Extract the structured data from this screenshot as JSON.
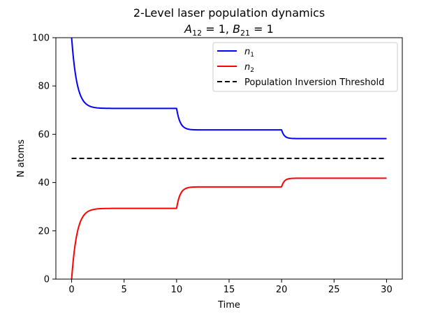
{
  "chart_data": {
    "type": "line",
    "title": "2-Level laser population dynamics",
    "subtitle": {
      "a_symbol": "A",
      "a_sub": "12",
      "a_value": " = 1, ",
      "b_symbol": "B",
      "b_sub": "21",
      "b_value": " = 1"
    },
    "xlabel": "Time",
    "ylabel": "N atoms",
    "xlim": [
      -1.5,
      31.5
    ],
    "ylim": [
      0,
      100
    ],
    "xticks": [
      0,
      5,
      10,
      15,
      20,
      25,
      30
    ],
    "yticks": [
      0,
      20,
      40,
      60,
      80,
      100
    ],
    "grid": false,
    "legend_position": "top-right",
    "series": [
      {
        "legend_symbol": "n",
        "legend_sub": "1",
        "color": "#0000ff",
        "linestyle": "solid",
        "segments": [
          {
            "t_start": 0,
            "t_end": 10,
            "start": 100,
            "plateau": 70.7,
            "rate": 2.0
          },
          {
            "t_start": 10,
            "t_end": 20,
            "start": 70.7,
            "plateau": 61.8,
            "rate": 3.0
          },
          {
            "t_start": 20,
            "t_end": 30,
            "start": 61.8,
            "plateau": 58.2,
            "rate": 4.0
          }
        ]
      },
      {
        "legend_symbol": "n",
        "legend_sub": "2",
        "color": "#ff0000",
        "linestyle": "solid",
        "segments": [
          {
            "t_start": 0,
            "t_end": 10,
            "start": 0,
            "plateau": 29.3,
            "rate": 2.0
          },
          {
            "t_start": 10,
            "t_end": 20,
            "start": 29.3,
            "plateau": 38.2,
            "rate": 3.0
          },
          {
            "t_start": 20,
            "t_end": 30,
            "start": 38.2,
            "plateau": 41.8,
            "rate": 4.0
          }
        ]
      },
      {
        "name": "Population Inversion Threshold",
        "color": "#000000",
        "linestyle": "dashed",
        "x": [
          0,
          30
        ],
        "y": [
          50,
          50
        ]
      }
    ]
  }
}
